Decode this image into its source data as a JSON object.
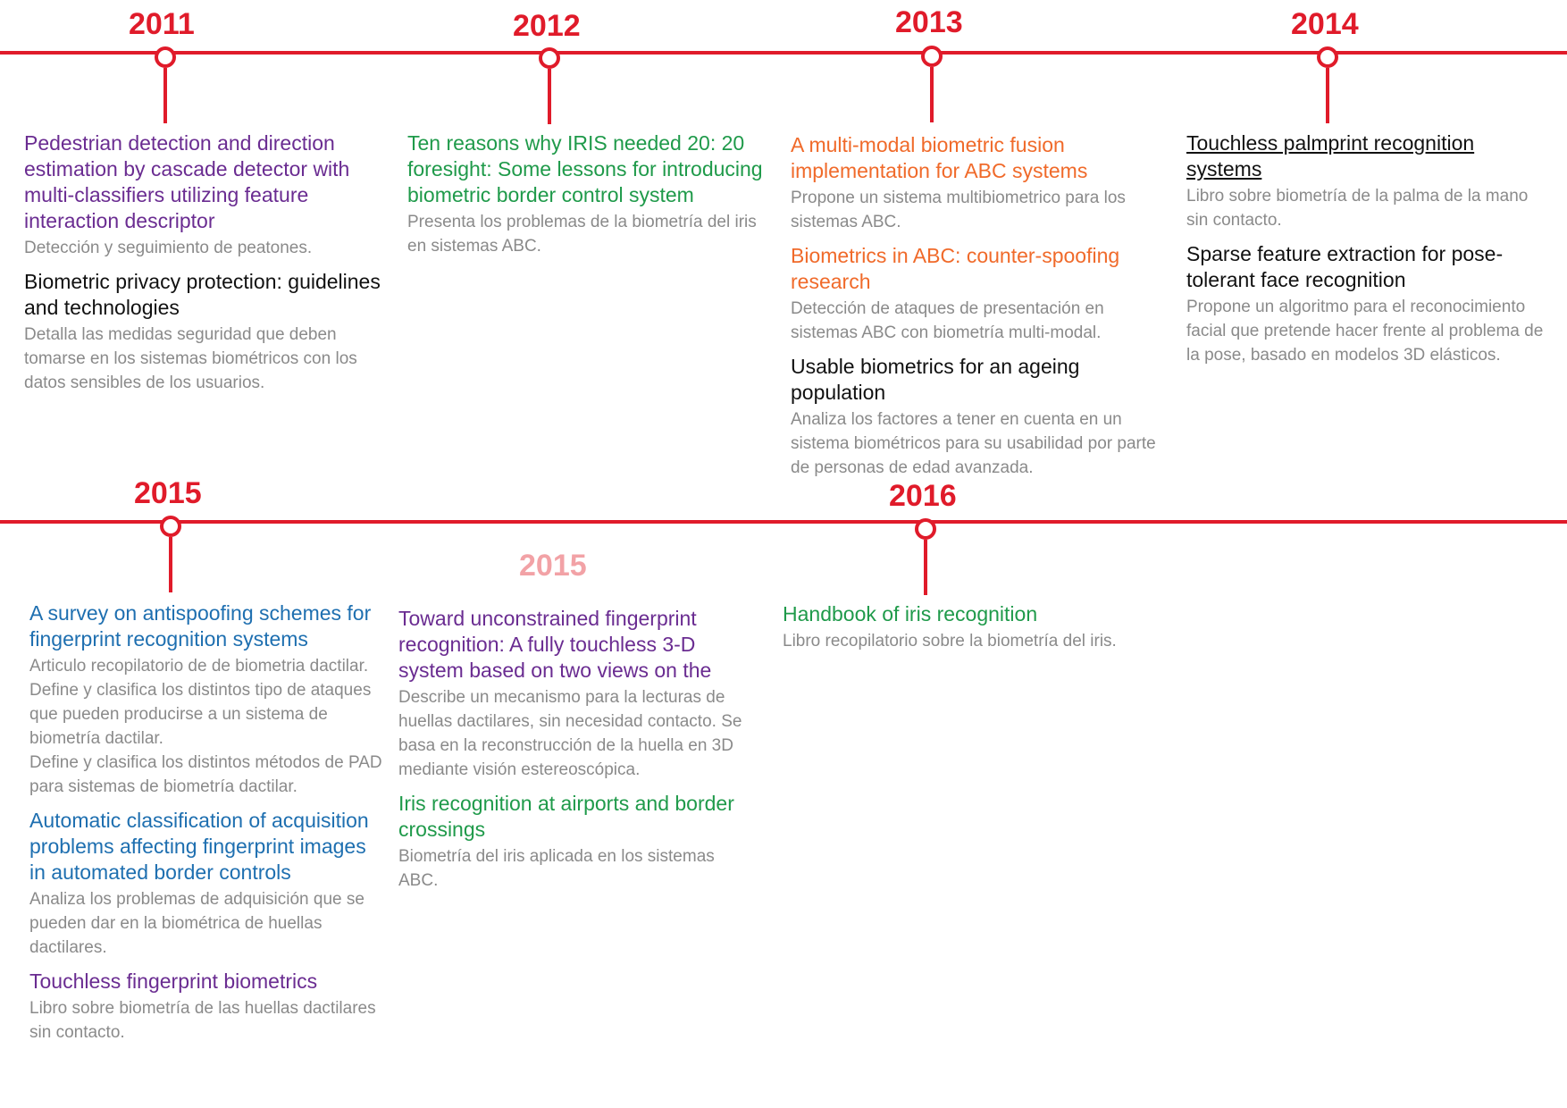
{
  "colors": {
    "timeline": "#e01b2a",
    "faded_year": "#f2a2a6",
    "description": "#8a8a8a",
    "purple": "#6a2c91",
    "black": "#111111",
    "green": "#1f9a4a",
    "orange": "#f06a2a",
    "blue": "#1e6fb0"
  },
  "row1": {
    "y2011": {
      "year": "2011",
      "entries": [
        {
          "title": "Pedestrian detection and direction estimation by cascade detector with multi-classifiers utilizing feature interaction descriptor",
          "color": "purple",
          "desc": [
            "Detección y seguimiento de peatones."
          ]
        },
        {
          "title": "Biometric privacy protection: guidelines and technologies",
          "color": "black",
          "desc": [
            "Detalla las medidas seguridad que deben tomarse en los sistemas biométricos con los datos sensibles de los usuarios."
          ]
        }
      ]
    },
    "y2012": {
      "year": "2012",
      "entries": [
        {
          "title": "Ten reasons why IRIS needed 20: 20 foresight: Some lessons for introducing biometric border control system",
          "color": "green",
          "desc": [
            "Presenta los problemas de la biometría del iris en sistemas ABC."
          ]
        }
      ]
    },
    "y2013": {
      "year": "2013",
      "entries": [
        {
          "title": "A multi-modal biometric fusion implementation for ABC systems",
          "color": "orange",
          "desc": [
            "Propone un sistema multibiometrico para los sistemas ABC."
          ]
        },
        {
          "title": "Biometrics in ABC: counter-spoofing research",
          "color": "orange",
          "desc": [
            "Detección de ataques de presentación en sistemas ABC con biometría multi-modal."
          ]
        },
        {
          "title": "Usable biometrics for an ageing population",
          "color": "black",
          "desc": [
            "Analiza los factores a tener en cuenta en un sistema biométricos para su usabilidad por parte de personas de edad avanzada."
          ]
        }
      ]
    },
    "y2014": {
      "year": "2014",
      "entries": [
        {
          "title": "Touchless palmprint recognition systems",
          "color": "black",
          "underline": true,
          "desc": [
            "Libro sobre biometría de la palma de la mano sin contacto."
          ]
        },
        {
          "title": "Sparse feature extraction for pose-tolerant face recognition",
          "color": "black",
          "desc": [
            "Propone un algoritmo para el reconocimiento facial que pretende hacer frente al problema de la pose, basado en modelos 3D elásticos."
          ]
        }
      ]
    }
  },
  "row2": {
    "y2015": {
      "year": "2015",
      "entries": [
        {
          "title": "A survey on antispoofing schemes for fingerprint recognition systems",
          "color": "blue",
          "desc": [
            "Articulo recopilatorio de de biometria dactilar.",
            "Define y clasifica los distintos tipo de ataques que pueden producirse a un sistema de biometría dactilar.",
            "Define y clasifica los distintos métodos de PAD para sistemas de biometría dactilar."
          ]
        },
        {
          "title": "Automatic classification of acquisition problems affecting fingerprint images in automated border controls",
          "color": "blue",
          "desc": [
            "Analiza los problemas de adquisición que se pueden dar en la biométrica de huellas dactilares."
          ]
        },
        {
          "title": "Touchless fingerprint biometrics",
          "color": "purple",
          "desc": [
            "Libro sobre biometría de las huellas dactilares sin contacto."
          ]
        }
      ]
    },
    "y2015b": {
      "year": "2015",
      "entries": [
        {
          "title": "Toward unconstrained fingerprint recognition: A fully touchless 3-D system based on two views on the",
          "color": "purple",
          "desc": [
            "Describe un mecanismo para la lecturas de huellas dactilares, sin necesidad contacto. Se basa en la reconstrucción de la huella en 3D mediante visión estereoscópica."
          ]
        },
        {
          "title": "Iris recognition at airports and border crossings",
          "color": "green",
          "desc": [
            "Biometría del iris aplicada en los sistemas ABC."
          ]
        }
      ]
    },
    "y2016": {
      "year": "2016",
      "entries": [
        {
          "title": "Handbook of iris recognition",
          "color": "green",
          "desc": [
            "Libro recopilatorio sobre la biometría del iris."
          ]
        }
      ]
    }
  }
}
